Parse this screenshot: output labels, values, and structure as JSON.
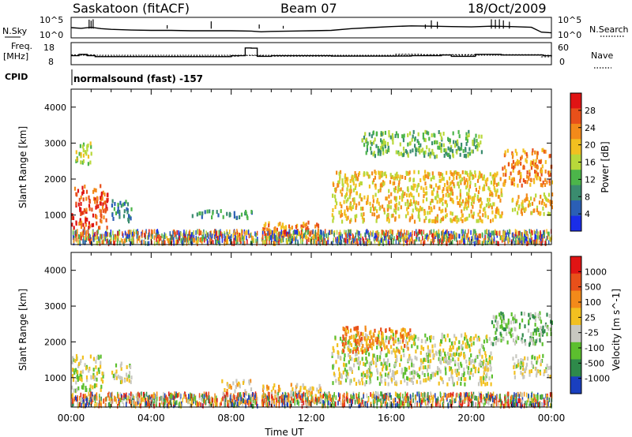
{
  "header": {
    "station": "Saskatoon (fitACF)",
    "beam": "Beam 07",
    "date": "18/Oct/2009"
  },
  "chart_data": [
    {
      "type": "line",
      "name": "noise-panel",
      "left_label": "N.Sky",
      "right_label": "N.Search",
      "left_ticks": [
        "10^5",
        "10^0"
      ],
      "right_ticks": [
        "10^5",
        "10^0"
      ],
      "x": [
        0,
        0.5,
        1.0,
        1.5,
        2,
        3,
        4,
        5,
        6,
        7,
        8,
        9,
        9.5,
        10,
        11,
        12,
        13,
        14,
        15,
        16,
        17,
        18,
        19,
        20,
        21,
        22,
        23,
        23.5,
        24
      ],
      "sky_log": [
        2.5,
        2.3,
        2.6,
        2.2,
        2.0,
        1.8,
        1.7,
        1.7,
        1.6,
        1.6,
        1.6,
        1.5,
        1.3,
        1.4,
        1.5,
        1.6,
        1.7,
        2.2,
        2.5,
        2.8,
        3.0,
        2.9,
        2.8,
        2.7,
        2.9,
        2.8,
        2.6,
        1.2,
        1.0
      ]
    },
    {
      "type": "line",
      "name": "freq-panel",
      "left_label_lines": [
        "Freq.",
        "[MHz]"
      ],
      "right_label": "Nave",
      "left_ticks": [
        "18",
        "8"
      ],
      "right_ticks": [
        "60",
        "0"
      ],
      "cpid_label": "CPID",
      "cpid_text": "normalsound (fast) -157",
      "freq": [
        [
          0,
          11.5
        ],
        [
          0.4,
          12.5
        ],
        [
          0.8,
          11.5
        ],
        [
          1.2,
          10.8
        ],
        [
          8.0,
          11.5
        ],
        [
          8.7,
          17.2
        ],
        [
          9.0,
          17.0
        ],
        [
          9.3,
          11.0
        ],
        [
          9.5,
          11.0
        ],
        [
          10,
          11.5
        ],
        [
          13.0,
          11.2
        ],
        [
          17.0,
          11.5
        ],
        [
          18.5,
          12.0
        ],
        [
          19.0,
          11.0
        ],
        [
          20.2,
          12.5
        ],
        [
          21.5,
          12.0
        ],
        [
          23.6,
          11.5
        ],
        [
          24,
          11.0
        ]
      ],
      "nave": [
        [
          0,
          26
        ],
        [
          1.2,
          22
        ],
        [
          8.4,
          24
        ],
        [
          9.6,
          22
        ],
        [
          16.2,
          28
        ],
        [
          17.5,
          27
        ],
        [
          23.5,
          20
        ],
        [
          24,
          18
        ]
      ]
    },
    {
      "type": "heatmap",
      "name": "power-panel",
      "x_range": [
        0,
        24
      ],
      "y_range": [
        180,
        4500
      ],
      "ylabel": "Slant Range [km]",
      "y_ticks": [
        "1000",
        "2000",
        "3000",
        "4000"
      ],
      "colorbar_label": "Power [dB]",
      "colorbar_ticks": [
        "28",
        "24",
        "20",
        "16",
        "12",
        "8",
        "4"
      ],
      "colors": [
        "#1a2de8",
        "#2b5fb5",
        "#3a8c6f",
        "#4cb54a",
        "#b8d83a",
        "#f2c020",
        "#f38a1a",
        "#e8501a",
        "#e01414"
      ],
      "regions": [
        {
          "t": [
            0.0,
            1.8
          ],
          "r": [
            600,
            1800
          ],
          "level": 7
        },
        {
          "t": [
            0.2,
            1.0
          ],
          "r": [
            2400,
            3000
          ],
          "level": 4
        },
        {
          "t": [
            2.0,
            3.0
          ],
          "r": [
            800,
            1400
          ],
          "level": 2
        },
        {
          "t": [
            6.0,
            9.0
          ],
          "r": [
            900,
            1100
          ],
          "level": 2
        },
        {
          "t": [
            9.5,
            12.5
          ],
          "r": [
            300,
            800
          ],
          "level": 6
        },
        {
          "t": [
            13.0,
            21.5
          ],
          "r": [
            800,
            2200
          ],
          "level": 5
        },
        {
          "t": [
            14.5,
            20.5
          ],
          "r": [
            2600,
            3300
          ],
          "level": 3
        },
        {
          "t": [
            21.5,
            24.0
          ],
          "r": [
            1800,
            2800
          ],
          "level": 6
        },
        {
          "t": [
            22.0,
            24.0
          ],
          "r": [
            1000,
            1600
          ],
          "level": 5
        }
      ]
    },
    {
      "type": "heatmap",
      "name": "velocity-panel",
      "x_range": [
        0,
        24
      ],
      "y_range": [
        180,
        4500
      ],
      "ylabel": "Slant Range [km]",
      "y_ticks": [
        "1000",
        "2000",
        "3000",
        "4000"
      ],
      "xlabel": "Time UT",
      "x_ticks": [
        "00:00",
        "04:00",
        "08:00",
        "12:00",
        "16:00",
        "20:00",
        "00:00"
      ],
      "colorbar_label": "Velocity [m s^-1]",
      "colorbar_ticks": [
        "1000",
        "500",
        "100",
        "25",
        "-25",
        "-100",
        "-500",
        "-1000"
      ],
      "colors": [
        "#1a3fbf",
        "#2e8a4a",
        "#5cbf2e",
        "#c8c8c0",
        "#f2c020",
        "#f38a1a",
        "#e8501a",
        "#e01414"
      ],
      "regions": [
        {
          "t": [
            0.0,
            1.6
          ],
          "r": [
            600,
            1600
          ],
          "level": 3
        },
        {
          "t": [
            2.0,
            3.0
          ],
          "r": [
            800,
            1400
          ],
          "level": 3
        },
        {
          "t": [
            7.5,
            9.0
          ],
          "r": [
            300,
            900
          ],
          "level": 4
        },
        {
          "t": [
            9.5,
            12.5
          ],
          "r": [
            300,
            800
          ],
          "level": 4
        },
        {
          "t": [
            13.0,
            21.0
          ],
          "r": [
            800,
            2200
          ],
          "level": 3
        },
        {
          "t": [
            13.5,
            17.0
          ],
          "r": [
            1700,
            2400
          ],
          "level": 5
        },
        {
          "t": [
            21.0,
            24.0
          ],
          "r": [
            1900,
            2800
          ],
          "level": 2
        },
        {
          "t": [
            22.0,
            24.0
          ],
          "r": [
            1000,
            1600
          ],
          "level": 3
        }
      ]
    }
  ]
}
